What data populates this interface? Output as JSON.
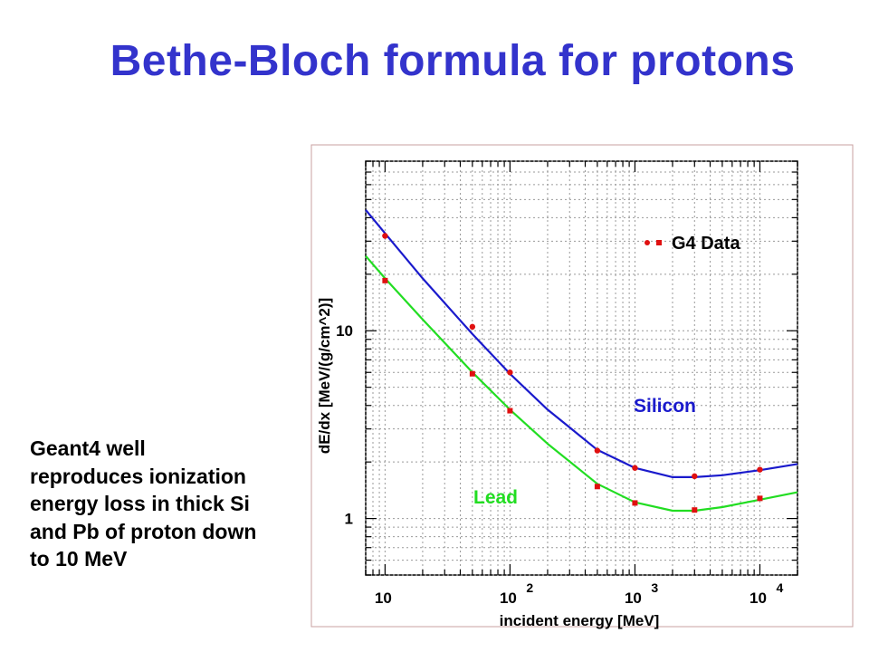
{
  "slide": {
    "title": "Bethe-Bloch formula for protons",
    "body_lines": [
      "Geant4 well",
      "reproduces ionization",
      "energy loss in thick Si",
      "and Pb of proton down",
      "to 10 MeV"
    ]
  },
  "chart_data": {
    "type": "line",
    "title": "",
    "xlabel": "incident energy [MeV]",
    "ylabel": "dE/dx [MeV/(g/cm^2)]",
    "x_scale": "log",
    "y_scale": "log",
    "xlim": [
      7,
      20000
    ],
    "ylim": [
      0.5,
      80
    ],
    "grid": true,
    "x_ticks": [
      {
        "value": 10,
        "base": "10",
        "exp": ""
      },
      {
        "value": 100,
        "base": "10",
        "exp": "2"
      },
      {
        "value": 1000,
        "base": "10",
        "exp": "3"
      },
      {
        "value": 10000,
        "base": "10",
        "exp": "4"
      }
    ],
    "y_ticks": [
      {
        "value": 1,
        "label": "1"
      },
      {
        "value": 10,
        "label": "10"
      }
    ],
    "legend": {
      "label": "G4 Data",
      "position": "top-right"
    },
    "series": [
      {
        "name": "Silicon",
        "color": "#1a1acc",
        "curve_x": [
          7,
          10,
          20,
          50,
          100,
          200,
          500,
          1000,
          2000,
          3000,
          5000,
          10000,
          20000
        ],
        "curve_y": [
          44,
          33,
          19,
          9.6,
          5.9,
          3.8,
          2.32,
          1.86,
          1.66,
          1.66,
          1.7,
          1.81,
          1.95
        ],
        "points_x": [
          10,
          50,
          100,
          500,
          1000,
          3000,
          10000
        ],
        "points_y": [
          32,
          10.5,
          6.0,
          2.3,
          1.86,
          1.68,
          1.82
        ]
      },
      {
        "name": "Lead",
        "color": "#22dd22",
        "curve_x": [
          7,
          10,
          20,
          50,
          100,
          200,
          500,
          1000,
          2000,
          3000,
          5000,
          10000,
          20000
        ],
        "curve_y": [
          25,
          19,
          11.5,
          6.0,
          3.8,
          2.5,
          1.53,
          1.22,
          1.1,
          1.1,
          1.15,
          1.26,
          1.38
        ],
        "points_x": [
          10,
          50,
          100,
          500,
          1000,
          3000,
          10000
        ],
        "points_y": [
          18.5,
          5.9,
          3.75,
          1.48,
          1.21,
          1.11,
          1.28
        ]
      }
    ]
  }
}
